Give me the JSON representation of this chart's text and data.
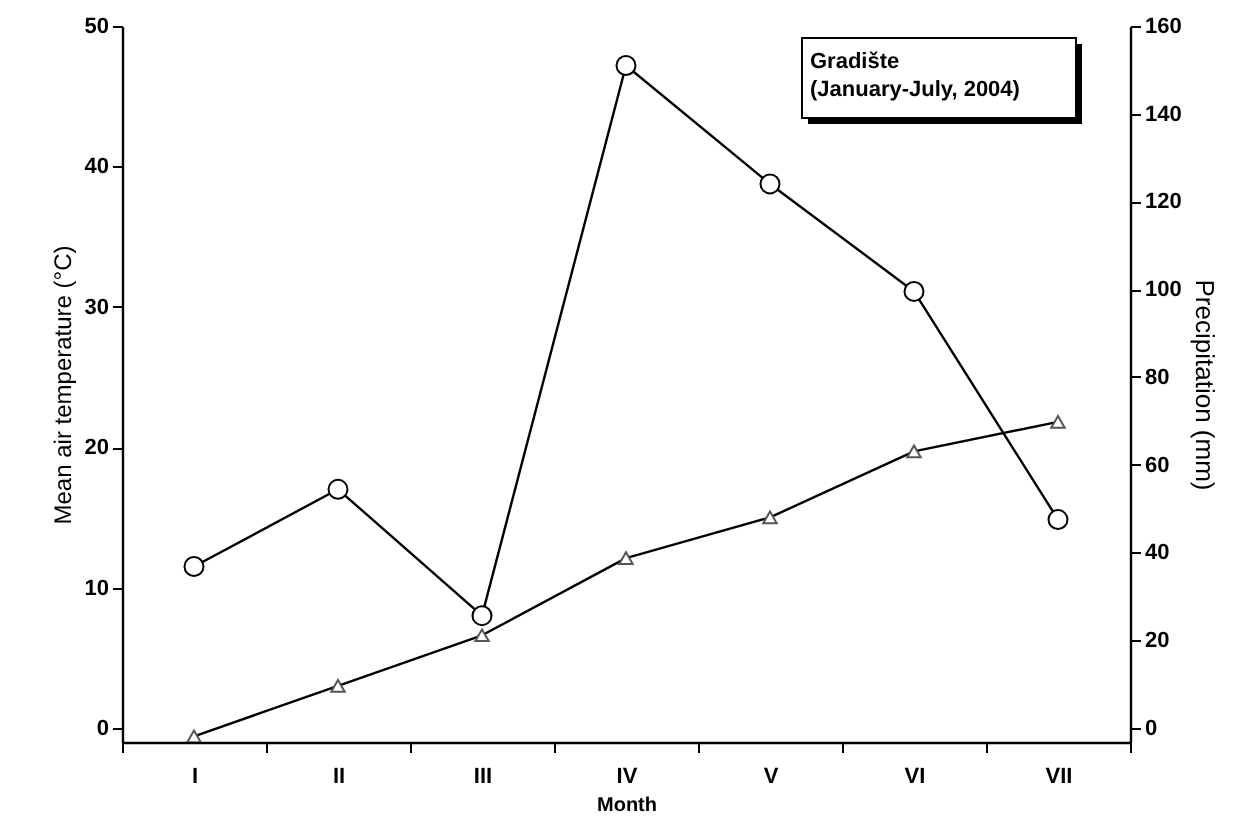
{
  "chart_data": {
    "type": "line",
    "categories": [
      "I",
      "II",
      "III",
      "IV",
      "V",
      "VI",
      "VII"
    ],
    "xlabel": "Month",
    "ylabel": "Mean air temperature (°C)",
    "y2label": "Precipitation (mm)",
    "series": [
      {
        "color": "#000000",
        "marker": "triangle",
        "axis": "y",
        "values": [
          -0.6,
          3,
          6.6,
          12.1,
          15,
          19.7,
          21.8
        ]
      },
      {
        "color": "#000000",
        "marker": "circle",
        "axis": "y2",
        "values": [
          36.8,
          54.4,
          25.6,
          151,
          124,
          99.5,
          47.5
        ]
      }
    ],
    "ylim": [
      -1,
      50
    ],
    "yticks": [
      0,
      10,
      20,
      30,
      40,
      50
    ],
    "y2lim": [
      -3.2,
      160
    ],
    "y2ticks": [
      0,
      20,
      40,
      60,
      80,
      100,
      120,
      140,
      160
    ],
    "annotations": [
      "Gradište",
      "(January-July, 2004)"
    ],
    "grid": false
  }
}
